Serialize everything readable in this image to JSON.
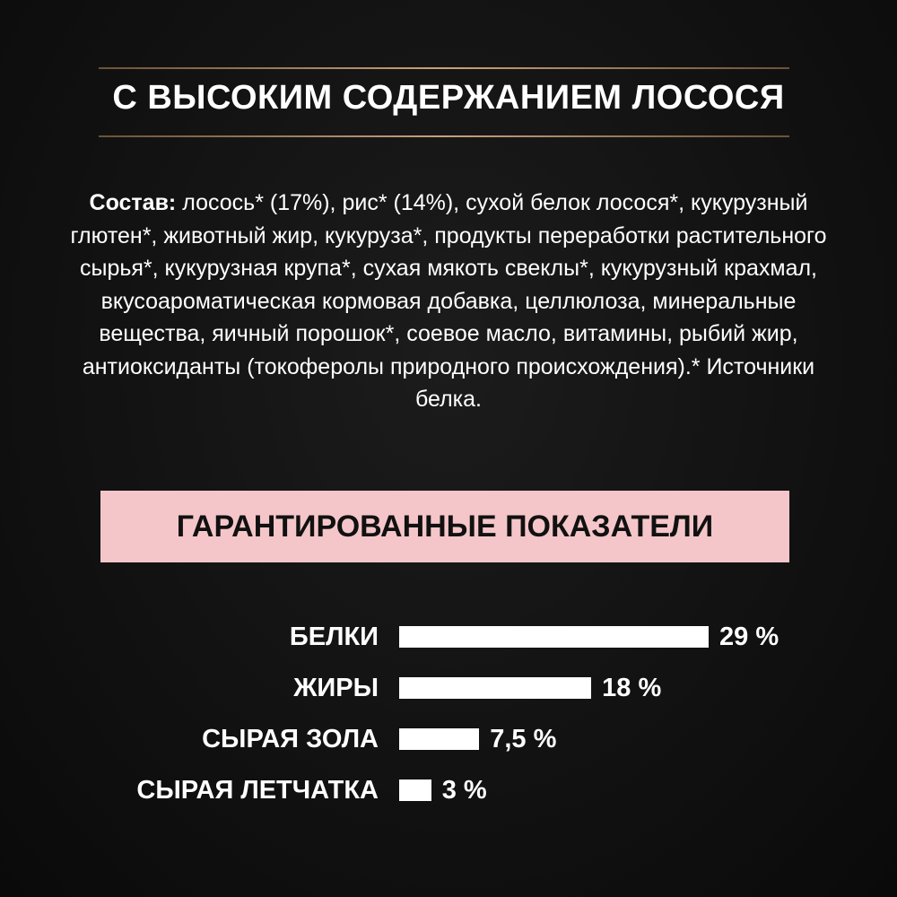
{
  "title": "С ВЫСОКИМ СОДЕРЖАНИЕМ ЛОСОСЯ",
  "composition": {
    "label": "Состав:",
    "text": " лосось* (17%), рис* (14%), сухой белок лосося*, кукурузный глютен*, животный жир, кукуруза*, продукты переработки растительного сырья*, кукурузная крупа*, сухая мякоть свеклы*, кукурузный крахмал, вкусоароматическая кормовая добавка, целлюлоза, минеральные вещества, яичный порошок*, соевое масло, витамины, рыбий жир, антиоксиданты (токоферолы природного происхождения).* Источники белка."
  },
  "guaranteed": {
    "title": "ГАРАНТИРОВАННЫЕ ПОКАЗАТЕЛИ",
    "accent_color": "#f5c6c9"
  },
  "chart_data": {
    "type": "bar",
    "orientation": "horizontal",
    "categories": [
      "БЕЛКИ",
      "ЖИРЫ",
      "СЫРАЯ ЗОЛА",
      "СЫРАЯ ЛЕТЧАТКА"
    ],
    "values": [
      29,
      18,
      7.5,
      3
    ],
    "value_labels": [
      "29 %",
      "18 %",
      "7,5 %",
      "3 %"
    ],
    "unit": "%",
    "bar_color": "#ffffff"
  }
}
